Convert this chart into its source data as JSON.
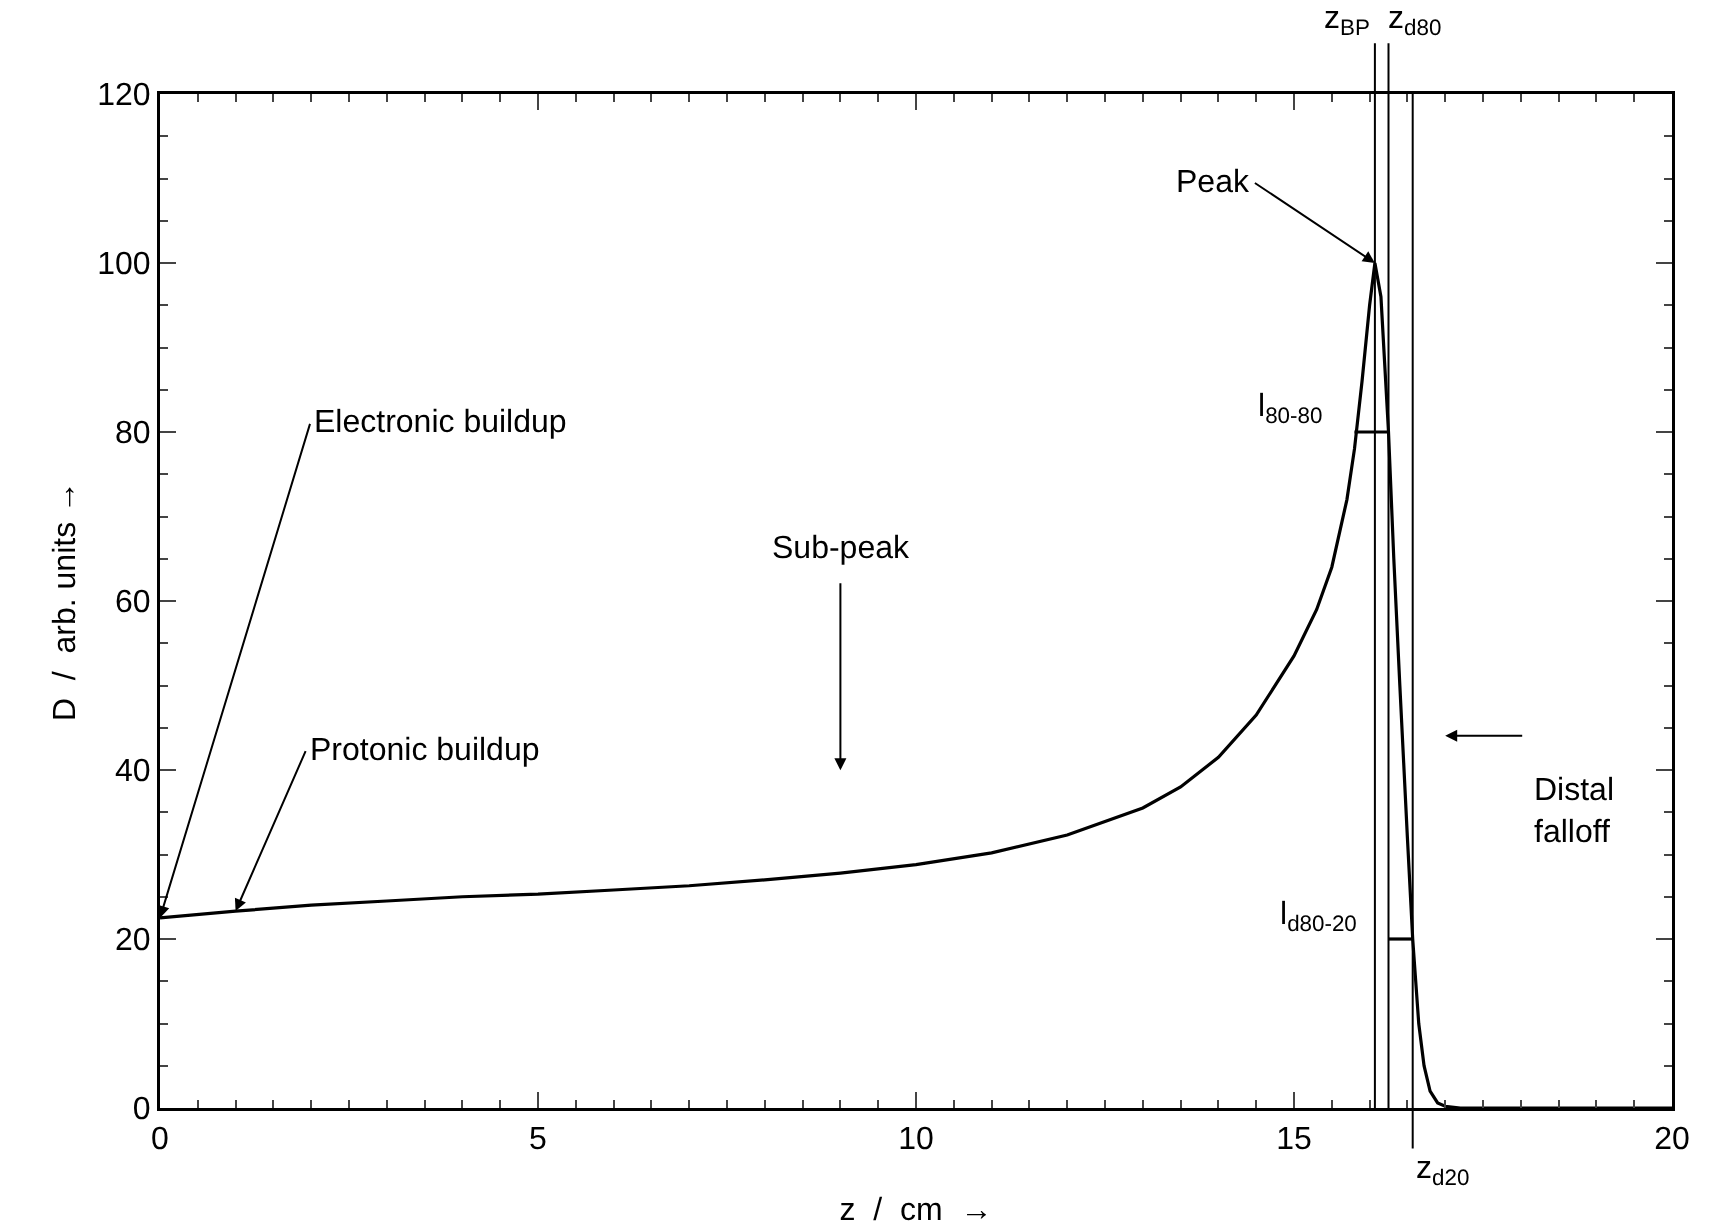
{
  "chart_data": {
    "type": "line",
    "xlabel": "z  /  cm  →",
    "ylabel": "D  /  arb. units →",
    "xlim": [
      0,
      20
    ],
    "xticks": [
      0,
      5,
      10,
      15,
      20
    ],
    "ylim": [
      0,
      120
    ],
    "yticks": [
      0,
      20,
      40,
      60,
      80,
      100,
      120
    ],
    "grid": false,
    "marker": "none",
    "line_style": "solid",
    "series": [
      {
        "color": "#000000",
        "x": [
          0,
          1,
          2,
          3,
          4,
          5,
          6,
          7,
          8,
          9,
          10,
          11,
          12,
          13,
          13.5,
          14,
          14.5,
          15,
          15.3,
          15.5,
          15.7,
          15.8,
          15.9,
          16,
          16.07,
          16.15,
          16.25,
          16.32,
          16.4,
          16.5,
          16.57,
          16.65,
          16.72,
          16.8,
          16.9,
          17,
          17.2,
          18,
          19,
          20
        ],
        "values": [
          22.5,
          23.3,
          24,
          24.5,
          25,
          25.3,
          25.8,
          26.3,
          27,
          27.8,
          28.8,
          30.2,
          32.3,
          35.5,
          38,
          41.5,
          46.5,
          53.5,
          59,
          64,
          72,
          78,
          86,
          95,
          100,
          96,
          80,
          65,
          50,
          32,
          20,
          10,
          5,
          2,
          0.6,
          0.2,
          0,
          0,
          0,
          0
        ]
      },
      {
        "color": "#000000",
        "x": [
          15.8,
          16.25
        ],
        "values": [
          80,
          80
        ]
      },
      {
        "color": "#000000",
        "x": [
          16.25,
          16.57
        ],
        "values": [
          20,
          20
        ]
      }
    ],
    "ref_lines": [
      {
        "axis": "x",
        "value": 16.07,
        "label": "z$_{BP}$"
      },
      {
        "axis": "x",
        "value": 16.25,
        "label": "z$_{d80}$"
      },
      {
        "axis": "x",
        "value": 16.57,
        "label": "z$_{d20}$"
      }
    ],
    "annotations": [
      {
        "text": "Electronic buildup",
        "x": 0,
        "y": 22.5
      },
      {
        "text": "Protonic buildup",
        "x": 1,
        "y": 23.3
      },
      "Sub-peak",
      {
        "text": "Peak",
        "x": 16.07,
        "y": 100
      },
      "Distal\nfalloff",
      {
        "text": "l$_{80-80}$",
        "x": 15.8,
        "y": 80
      },
      {
        "text": "l$_{d80-20}$",
        "x": 16.25,
        "y": 20
      }
    ]
  }
}
